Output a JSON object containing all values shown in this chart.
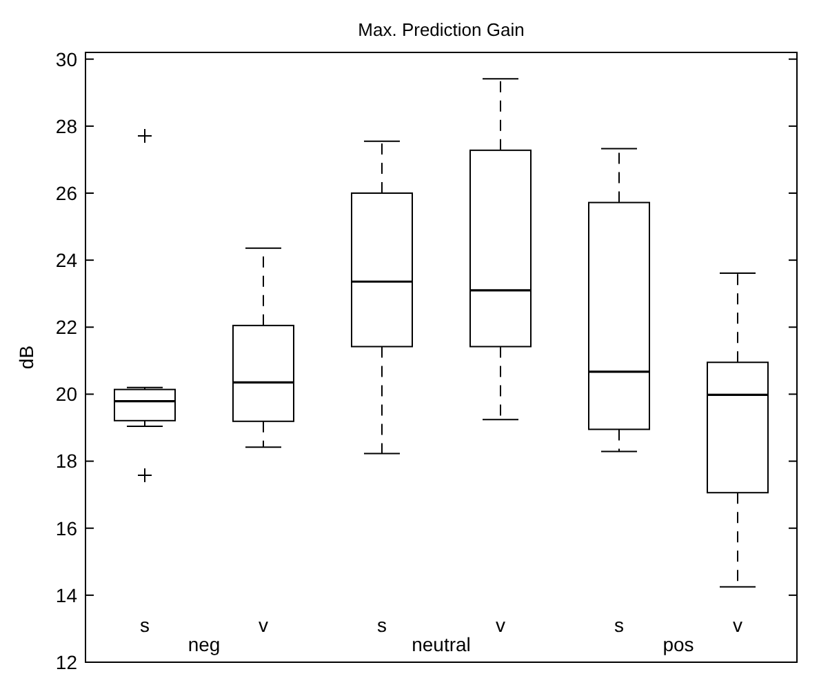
{
  "chart_data": {
    "type": "box",
    "title": "Max. Prediction Gain",
    "ylabel": "dB",
    "categories": [
      "s",
      "v",
      "s",
      "v",
      "s",
      "v"
    ],
    "boxes": [
      {
        "low": 19.04,
        "q1": 19.21,
        "median": 19.79,
        "q3": 20.14,
        "high": 20.2,
        "outliers": [
          27.71,
          17.58
        ]
      },
      {
        "low": 18.42,
        "q1": 19.19,
        "median": 20.35,
        "q3": 22.05,
        "high": 24.36
      },
      {
        "low": 18.23,
        "q1": 21.42,
        "median": 23.36,
        "q3": 26.0,
        "high": 27.55
      },
      {
        "low": 19.24,
        "q1": 21.42,
        "median": 23.1,
        "q3": 27.28,
        "high": 29.41
      },
      {
        "low": 18.29,
        "q1": 18.95,
        "median": 20.67,
        "q3": 25.72,
        "high": 27.33
      },
      {
        "low": 14.25,
        "q1": 17.06,
        "median": 19.98,
        "q3": 20.95,
        "high": 23.61
      }
    ],
    "ylim": [
      12,
      30.2
    ],
    "yticks": [
      12,
      14,
      16,
      18,
      20,
      22,
      24,
      26,
      28,
      30
    ],
    "annotations": [
      "neg",
      "neutral",
      "pos"
    ],
    "color": "#000000"
  }
}
